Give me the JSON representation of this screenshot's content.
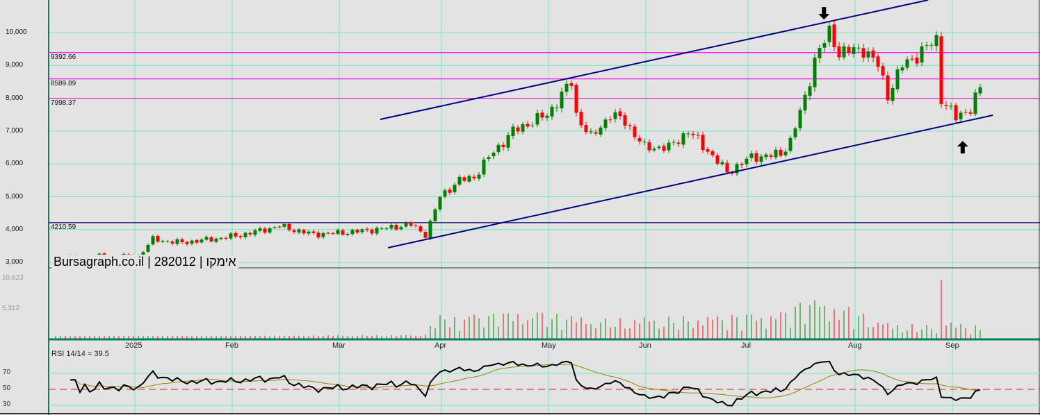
{
  "chart_data": {
    "type": "candlestick",
    "title": "Bursagraph.co.il | 282012 | אימקו",
    "price_axis": {
      "ticks": [
        3000,
        4000,
        5000,
        6000,
        7000,
        8000,
        9000,
        10000
      ],
      "tick_labels": [
        "3,000",
        "4,000",
        "5,000",
        "6,000",
        "7,000",
        "8,000",
        "9,000",
        "10,000"
      ],
      "ylim": [
        2800,
        10950
      ]
    },
    "x_axis": {
      "month_labels": [
        {
          "day": 18,
          "label": "2025"
        },
        {
          "day": 38,
          "label": "Feb"
        },
        {
          "day": 60,
          "label": "Mar"
        },
        {
          "day": 81,
          "label": "Apr"
        },
        {
          "day": 103,
          "label": "May"
        },
        {
          "day": 123,
          "label": "Jun"
        },
        {
          "day": 144,
          "label": "Jul"
        },
        {
          "day": 166,
          "label": "Aug"
        },
        {
          "day": 186,
          "label": "Sep"
        }
      ],
      "days": 191
    },
    "close_keypoints": [
      [
        0,
        3150
      ],
      [
        17,
        3200
      ],
      [
        20,
        3700
      ],
      [
        26,
        3600
      ],
      [
        37,
        3800
      ],
      [
        46,
        4100
      ],
      [
        53,
        3850
      ],
      [
        63,
        3950
      ],
      [
        73,
        4150
      ],
      [
        76,
        3850
      ],
      [
        77,
        4200
      ],
      [
        79,
        5000
      ],
      [
        83,
        5500
      ],
      [
        86,
        5600
      ],
      [
        89,
        6200
      ],
      [
        94,
        7000
      ],
      [
        101,
        7500
      ],
      [
        106,
        8500
      ],
      [
        107,
        7500
      ],
      [
        110,
        6800
      ],
      [
        114,
        7500
      ],
      [
        117,
        7300
      ],
      [
        121,
        6500
      ],
      [
        126,
        6500
      ],
      [
        130,
        7000
      ],
      [
        134,
        6400
      ],
      [
        138,
        5750
      ],
      [
        143,
        6200
      ],
      [
        149,
        6300
      ],
      [
        151,
        6700
      ],
      [
        154,
        8000
      ],
      [
        156,
        9200
      ],
      [
        159,
        10000
      ],
      [
        161,
        9400
      ],
      [
        166,
        9500
      ],
      [
        169,
        9000
      ],
      [
        171,
        8100
      ],
      [
        174,
        9000
      ],
      [
        177,
        9300
      ],
      [
        181,
        9800
      ],
      [
        182,
        8000
      ],
      [
        185,
        7400
      ],
      [
        188,
        7700
      ],
      [
        190,
        8300
      ]
    ],
    "volume_keypoints": [
      [
        0,
        300
      ],
      [
        76,
        700
      ],
      [
        78,
        3500
      ],
      [
        100,
        4000
      ],
      [
        110,
        3000
      ],
      [
        137,
        3500
      ],
      [
        150,
        4000
      ],
      [
        154,
        6000
      ],
      [
        162,
        5000
      ],
      [
        170,
        2500
      ],
      [
        181,
        2000
      ],
      [
        182,
        11800
      ],
      [
        183,
        2500
      ],
      [
        190,
        2000
      ]
    ],
    "volume_axis": {
      "tick_labels": [
        "10,623",
        "5,312"
      ],
      "ticks": [
        10623,
        5312
      ]
    },
    "horizontal_levels": [
      {
        "value": 9392.66,
        "label": "9392.66",
        "color": "#ff00ff"
      },
      {
        "value": 8589.89,
        "label": "8589.89",
        "color": "#ff00ff"
      },
      {
        "value": 7998.37,
        "label": "7998.37",
        "color": "#ff00ff"
      },
      {
        "value": 4210.59,
        "label": "4210.59",
        "color": "#000066"
      }
    ],
    "trend_lines": [
      {
        "name": "upper-channel",
        "from": [
          66.7,
          7357
        ],
        "to": [
          179.3,
          10994
        ],
        "color": "#000080"
      },
      {
        "name": "lower-channel",
        "from": [
          68.3,
          3446
        ],
        "to": [
          192.6,
          7484
        ],
        "color": "#000080"
      }
    ],
    "arrows": [
      {
        "dir": "down",
        "day": 157.9,
        "price": 10400
      },
      {
        "dir": "up",
        "day": 186.4,
        "price": 6700
      }
    ],
    "rsi": {
      "label": "RSI 14/14 = 39.5",
      "period": 14,
      "ticks": [
        70,
        50,
        30
      ],
      "tick_labels": [
        "70",
        "50",
        "30"
      ]
    },
    "colors": {
      "up": "#008000",
      "down": "#ff0000",
      "grid": "#70e8c0",
      "bg": "#e3e3e3"
    }
  }
}
